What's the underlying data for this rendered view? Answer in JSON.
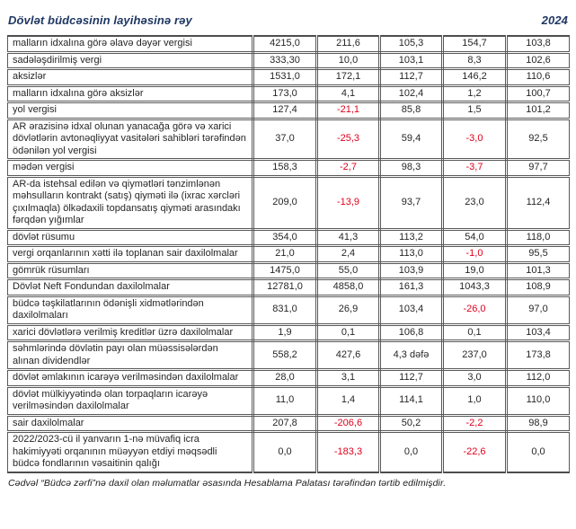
{
  "header": {
    "title": "Dövlət büdcəsinin layihəsinə rəy",
    "year": "2024"
  },
  "colors": {
    "title_navy": "#1f3864",
    "negative_red": "#e0001b",
    "border_gray": "#595959",
    "body_text": "#262626"
  },
  "table": {
    "columns": 6,
    "rows": [
      {
        "label": "malların idxalına görə əlavə dəyər vergisi",
        "values": [
          "4215,0",
          "211,6",
          "105,3",
          "154,7",
          "103,8"
        ]
      },
      {
        "label": "sadələşdirilmiş vergi",
        "values": [
          "333,30",
          "10,0",
          "103,1",
          "8,3",
          "102,6"
        ]
      },
      {
        "label": "aksizlər",
        "values": [
          "1531,0",
          "172,1",
          "112,7",
          "146,2",
          "110,6"
        ]
      },
      {
        "label": "malların idxalına görə aksizlər",
        "values": [
          "173,0",
          "4,1",
          "102,4",
          "1,2",
          "100,7"
        ]
      },
      {
        "label": "yol vergisi",
        "values": [
          "127,4",
          "-21,1",
          "85,8",
          "1,5",
          "101,2"
        ]
      },
      {
        "label": "AR ərazisinə idxal olunan yanacağa görə və xarici dövlətlərin avtonəqliyyat vasitələri sahibləri tərəfindən ödənilən yol vergisi",
        "values": [
          "37,0",
          "-25,3",
          "59,4",
          "-3,0",
          "92,5"
        ]
      },
      {
        "label": "mədən vergisi",
        "values": [
          "158,3",
          "-2,7",
          "98,3",
          "-3,7",
          "97,7"
        ]
      },
      {
        "label": "AR-da istehsal edilən və qiymətləri tənzimlənən məhsulların kontrakt (satış) qiyməti ilə (ixrac xərcləri çıxılmaqla) ölkədaxili topdansatış qiyməti arasındakı fərqdən yığımlar",
        "values": [
          "209,0",
          "-13,9",
          "93,7",
          "23,0",
          "112,4"
        ]
      },
      {
        "label": "dövlət rüsumu",
        "values": [
          "354,0",
          "41,3",
          "113,2",
          "54,0",
          "118,0"
        ]
      },
      {
        "label": "vergi orqanlarının xətti ilə toplanan sair daxilolmalar",
        "values": [
          "21,0",
          "2,4",
          "113,0",
          "-1,0",
          "95,5"
        ]
      },
      {
        "label": "gömrük rüsumları",
        "values": [
          "1475,0",
          "55,0",
          "103,9",
          "19,0",
          "101,3"
        ]
      },
      {
        "label": "Dövlət Neft Fondundan daxilolmalar",
        "values": [
          "12781,0",
          "4858,0",
          "161,3",
          "1043,3",
          "108,9"
        ]
      },
      {
        "label": "büdcə təşkilatlarının ödənişli xidmətlərindən daxilolmaları",
        "values": [
          "831,0",
          "26,9",
          "103,4",
          "-26,0",
          "97,0"
        ]
      },
      {
        "label": "xarici dövlətlərə verilmiş kreditlər üzrə daxilolmalar",
        "values": [
          "1,9",
          "0,1",
          "106,8",
          "0,1",
          "103,4"
        ]
      },
      {
        "label": "səhmlərində dövlətin payı olan müəssisələrdən alınan dividendlər",
        "values": [
          "558,2",
          "427,6",
          "4,3 dəfə",
          "237,0",
          "173,8"
        ]
      },
      {
        "label": "dövlət əmlakının icarəyə verilməsindən daxilolmalar",
        "values": [
          "28,0",
          "3,1",
          "112,7",
          "3,0",
          "112,0"
        ]
      },
      {
        "label": "dövlət mülkiyyətində olan torpaqların icarəyə verilməsindən daxilolmalar",
        "values": [
          "11,0",
          "1,4",
          "114,1",
          "1,0",
          "110,0"
        ]
      },
      {
        "label": "sair daxilolmalar",
        "values": [
          "207,8",
          "-206,6",
          "50,2",
          "-2,2",
          "98,9"
        ]
      },
      {
        "label": "2022/2023-cü il yanvarın 1-nə müvafiq icra hakimiyyəti orqanının müəyyən etdiyi məqsədli büdcə fondlarının vəsaitinin qalığı",
        "values": [
          "0,0",
          "-183,3",
          "0,0",
          "-22,6",
          "0,0"
        ]
      }
    ]
  },
  "footer": {
    "note": "Cədvəl “Büdcə zərfi”nə daxil olan məlumatlar əsasında Hesablama Palatası tərəfindən tərtib edilmişdir."
  }
}
